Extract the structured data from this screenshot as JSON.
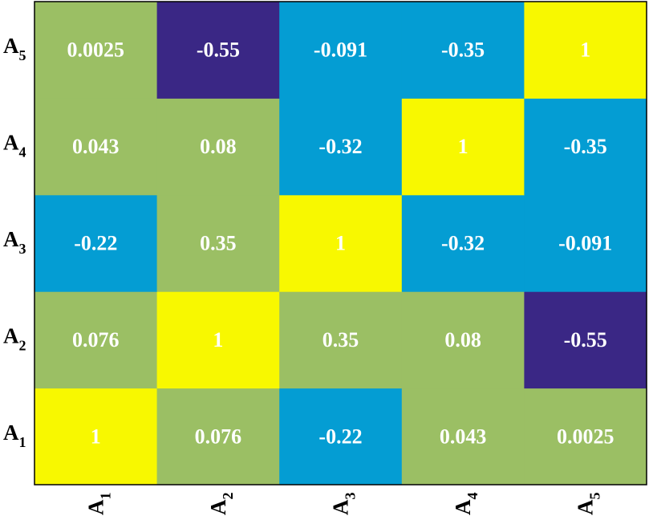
{
  "chart_data": {
    "type": "heatmap",
    "title": "",
    "xlabel": "",
    "ylabel": "",
    "x_categories": [
      {
        "main": "A",
        "sub": "1"
      },
      {
        "main": "A",
        "sub": "2"
      },
      {
        "main": "A",
        "sub": "3"
      },
      {
        "main": "A",
        "sub": "4"
      },
      {
        "main": "A",
        "sub": "5"
      }
    ],
    "y_categories": [
      {
        "main": "A",
        "sub": "1"
      },
      {
        "main": "A",
        "sub": "2"
      },
      {
        "main": "A",
        "sub": "3"
      },
      {
        "main": "A",
        "sub": "4"
      },
      {
        "main": "A",
        "sub": "5"
      }
    ],
    "y_order": "bottom-to-top",
    "values": [
      [
        "1",
        "0.076",
        "-0.22",
        "0.043",
        "0.0025"
      ],
      [
        "0.076",
        "1",
        "0.35",
        "0.08",
        "-0.55"
      ],
      [
        "-0.22",
        "0.35",
        "1",
        "-0.32",
        "-0.091"
      ],
      [
        "0.043",
        "0.08",
        "-0.32",
        "1",
        "-0.35"
      ],
      [
        "0.0025",
        "-0.55",
        "-0.091",
        "-0.35",
        "1"
      ]
    ],
    "color_scale": [
      {
        "max": -0.5,
        "color": "#3a2785"
      },
      {
        "max": -0.05,
        "color": "#049dd3"
      },
      {
        "max": 0.99,
        "color": "#9bbf64"
      },
      {
        "max": 1.0,
        "color": "#f8f800"
      }
    ],
    "grid": false,
    "colorbar": false
  }
}
